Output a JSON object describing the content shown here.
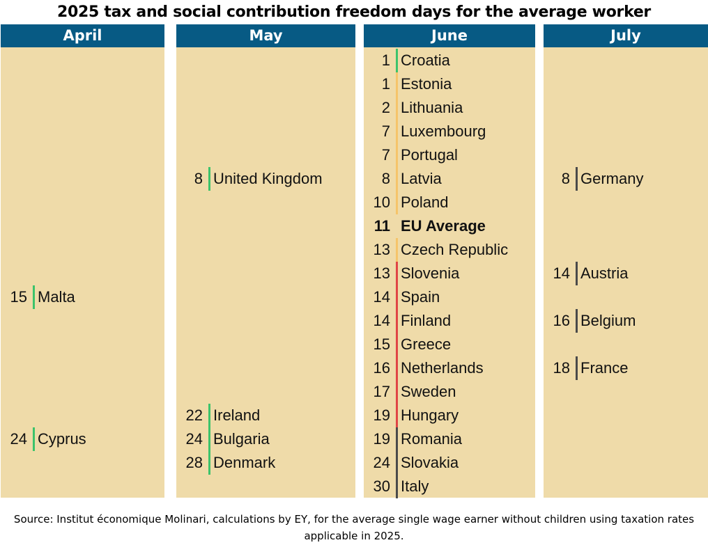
{
  "title": "2025 tax and social contribution freedom days for the average worker",
  "columns": [
    {
      "id": "april",
      "header": "April",
      "entries": [
        {
          "day": "15",
          "country": "Malta",
          "row": 10,
          "color": "#3cc36b"
        },
        {
          "day": "24",
          "country": "Cyprus",
          "row": 16,
          "color": "#3cc36b"
        }
      ]
    },
    {
      "id": "may",
      "header": "May",
      "entries": [
        {
          "day": "8",
          "country": "United Kingdom",
          "row": 5,
          "color": "#3cc36b"
        },
        {
          "day": "22",
          "country": "Ireland",
          "row": 15,
          "color": "#3cc36b"
        },
        {
          "day": "24",
          "country": "Bulgaria",
          "row": 16,
          "color": "#3cc36b"
        },
        {
          "day": "28",
          "country": "Denmark",
          "row": 17,
          "color": "#3cc36b"
        }
      ]
    },
    {
      "id": "june",
      "header": "June",
      "entries": [
        {
          "day": "1",
          "country": "Croatia",
          "row": 0,
          "color": "#3cc36b"
        },
        {
          "day": "1",
          "country": "Estonia",
          "row": 1,
          "color": "#f6c46a"
        },
        {
          "day": "2",
          "country": "Lithuania",
          "row": 2,
          "color": "#f6c46a"
        },
        {
          "day": "7",
          "country": "Luxembourg",
          "row": 3,
          "color": "#f6c46a"
        },
        {
          "day": "7",
          "country": "Portugal",
          "row": 4,
          "color": "#f6c46a"
        },
        {
          "day": "8",
          "country": "Latvia",
          "row": 5,
          "color": "#f6c46a"
        },
        {
          "day": "10",
          "country": "Poland",
          "row": 6,
          "color": "#f6c46a"
        },
        {
          "day": "11",
          "country": "EU Average",
          "row": 7,
          "color": "",
          "bold": true
        },
        {
          "day": "13",
          "country": "Czech Republic",
          "row": 8,
          "color": "#f6c46a"
        },
        {
          "day": "13",
          "country": "Slovenia",
          "row": 9,
          "color": "#e04545"
        },
        {
          "day": "14",
          "country": "Spain",
          "row": 10,
          "color": "#e04545"
        },
        {
          "day": "14",
          "country": "Finland",
          "row": 11,
          "color": "#e04545"
        },
        {
          "day": "15",
          "country": "Greece",
          "row": 12,
          "color": "#e04545"
        },
        {
          "day": "16",
          "country": "Netherlands",
          "row": 13,
          "color": "#e04545"
        },
        {
          "day": "17",
          "country": "Sweden",
          "row": 14,
          "color": "#e04545"
        },
        {
          "day": "19",
          "country": "Hungary",
          "row": 15,
          "color": "#e04545"
        },
        {
          "day": "19",
          "country": "Romania",
          "row": 16,
          "color": "#4a4a4a"
        },
        {
          "day": "24",
          "country": "Slovakia",
          "row": 17,
          "color": "#4a4a4a"
        },
        {
          "day": "30",
          "country": "Italy",
          "row": 18,
          "color": "#4a4a4a"
        }
      ]
    },
    {
      "id": "july",
      "header": "July",
      "entries": [
        {
          "day": "8",
          "country": "Germany",
          "row": 5,
          "color": "#4a4a4a"
        },
        {
          "day": "14",
          "country": "Austria",
          "row": 9,
          "color": "#4a4a4a"
        },
        {
          "day": "16",
          "country": "Belgium",
          "row": 11,
          "color": "#4a4a4a"
        },
        {
          "day": "18",
          "country": "France",
          "row": 13,
          "color": "#4a4a4a"
        }
      ]
    }
  ],
  "source_line1": "Source: Institut économique Molinari, calculations by EY, for the average single wage earner without children using taxation rates",
  "source_line2": "applicable in 2025."
}
